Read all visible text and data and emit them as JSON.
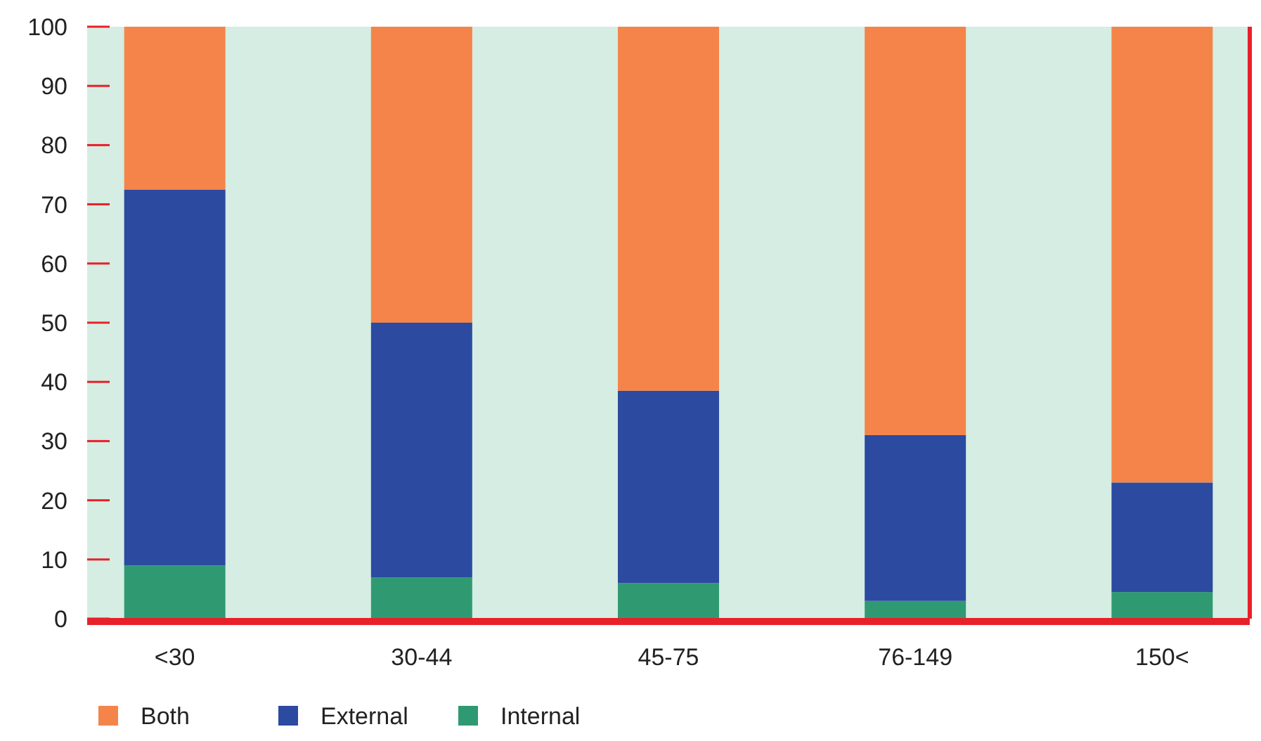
{
  "chart_data": {
    "type": "bar",
    "stacked": true,
    "categories": [
      "<30",
      "30-44",
      "45-75",
      "76-149",
      "150<"
    ],
    "series": [
      {
        "name": "Internal",
        "color": "#2f9a72",
        "values": [
          9,
          7,
          6,
          3,
          4.5
        ]
      },
      {
        "name": "External",
        "color": "#2b4aa0",
        "values": [
          63.5,
          43,
          32.5,
          28,
          18.5
        ]
      },
      {
        "name": "Both",
        "color": "#f4844a",
        "values": [
          27.5,
          50,
          61.5,
          69,
          77
        ]
      }
    ],
    "ylim": [
      0,
      100
    ],
    "yticks": [
      0,
      10,
      20,
      30,
      40,
      50,
      60,
      70,
      80,
      90,
      100
    ],
    "grid": false,
    "legend": "bottom left"
  }
}
